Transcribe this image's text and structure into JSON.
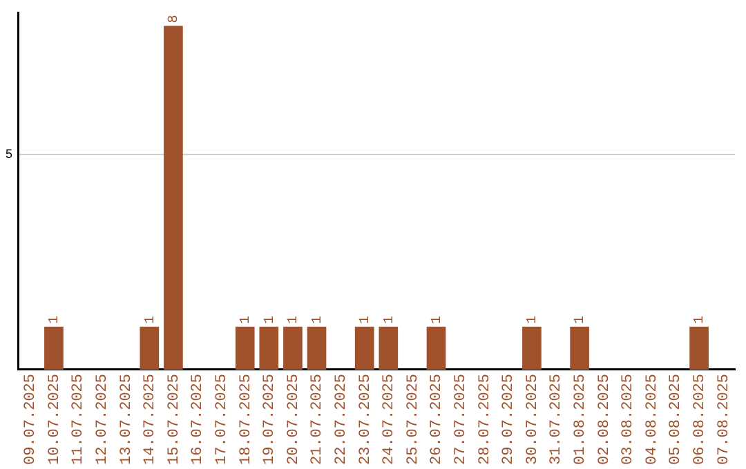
{
  "chart_data": {
    "type": "bar",
    "categories": [
      "09.07.2025",
      "10.07.2025",
      "11.07.2025",
      "12.07.2025",
      "13.07.2025",
      "14.07.2025",
      "15.07.2025",
      "16.07.2025",
      "17.07.2025",
      "18.07.2025",
      "19.07.2025",
      "20.07.2025",
      "21.07.2025",
      "22.07.2025",
      "23.07.2025",
      "24.07.2025",
      "25.07.2025",
      "26.07.2025",
      "27.07.2025",
      "28.07.2025",
      "29.07.2025",
      "30.07.2025",
      "31.07.2025",
      "01.08.2025",
      "02.08.2025",
      "03.08.2025",
      "04.08.2025",
      "05.08.2025",
      "06.08.2025",
      "07.08.2025"
    ],
    "series": [
      {
        "color": "#a0522d",
        "values": [
          0,
          1,
          0,
          0,
          0,
          1,
          8,
          0,
          0,
          1,
          1,
          1,
          1,
          0,
          1,
          1,
          0,
          1,
          0,
          0,
          0,
          1,
          0,
          1,
          0,
          0,
          0,
          0,
          1,
          0
        ],
        "value_labels": [
          null,
          "1",
          null,
          null,
          null,
          "1",
          "8",
          null,
          null,
          "1",
          "1",
          "1",
          "1",
          null,
          "1",
          "1",
          null,
          "1",
          null,
          null,
          null,
          "1",
          null,
          "1",
          null,
          null,
          null,
          null,
          "1",
          null
        ]
      }
    ],
    "ylim": [
      0,
      8.3
    ],
    "yticks": [
      5
    ],
    "grid": "y",
    "legend": false
  }
}
